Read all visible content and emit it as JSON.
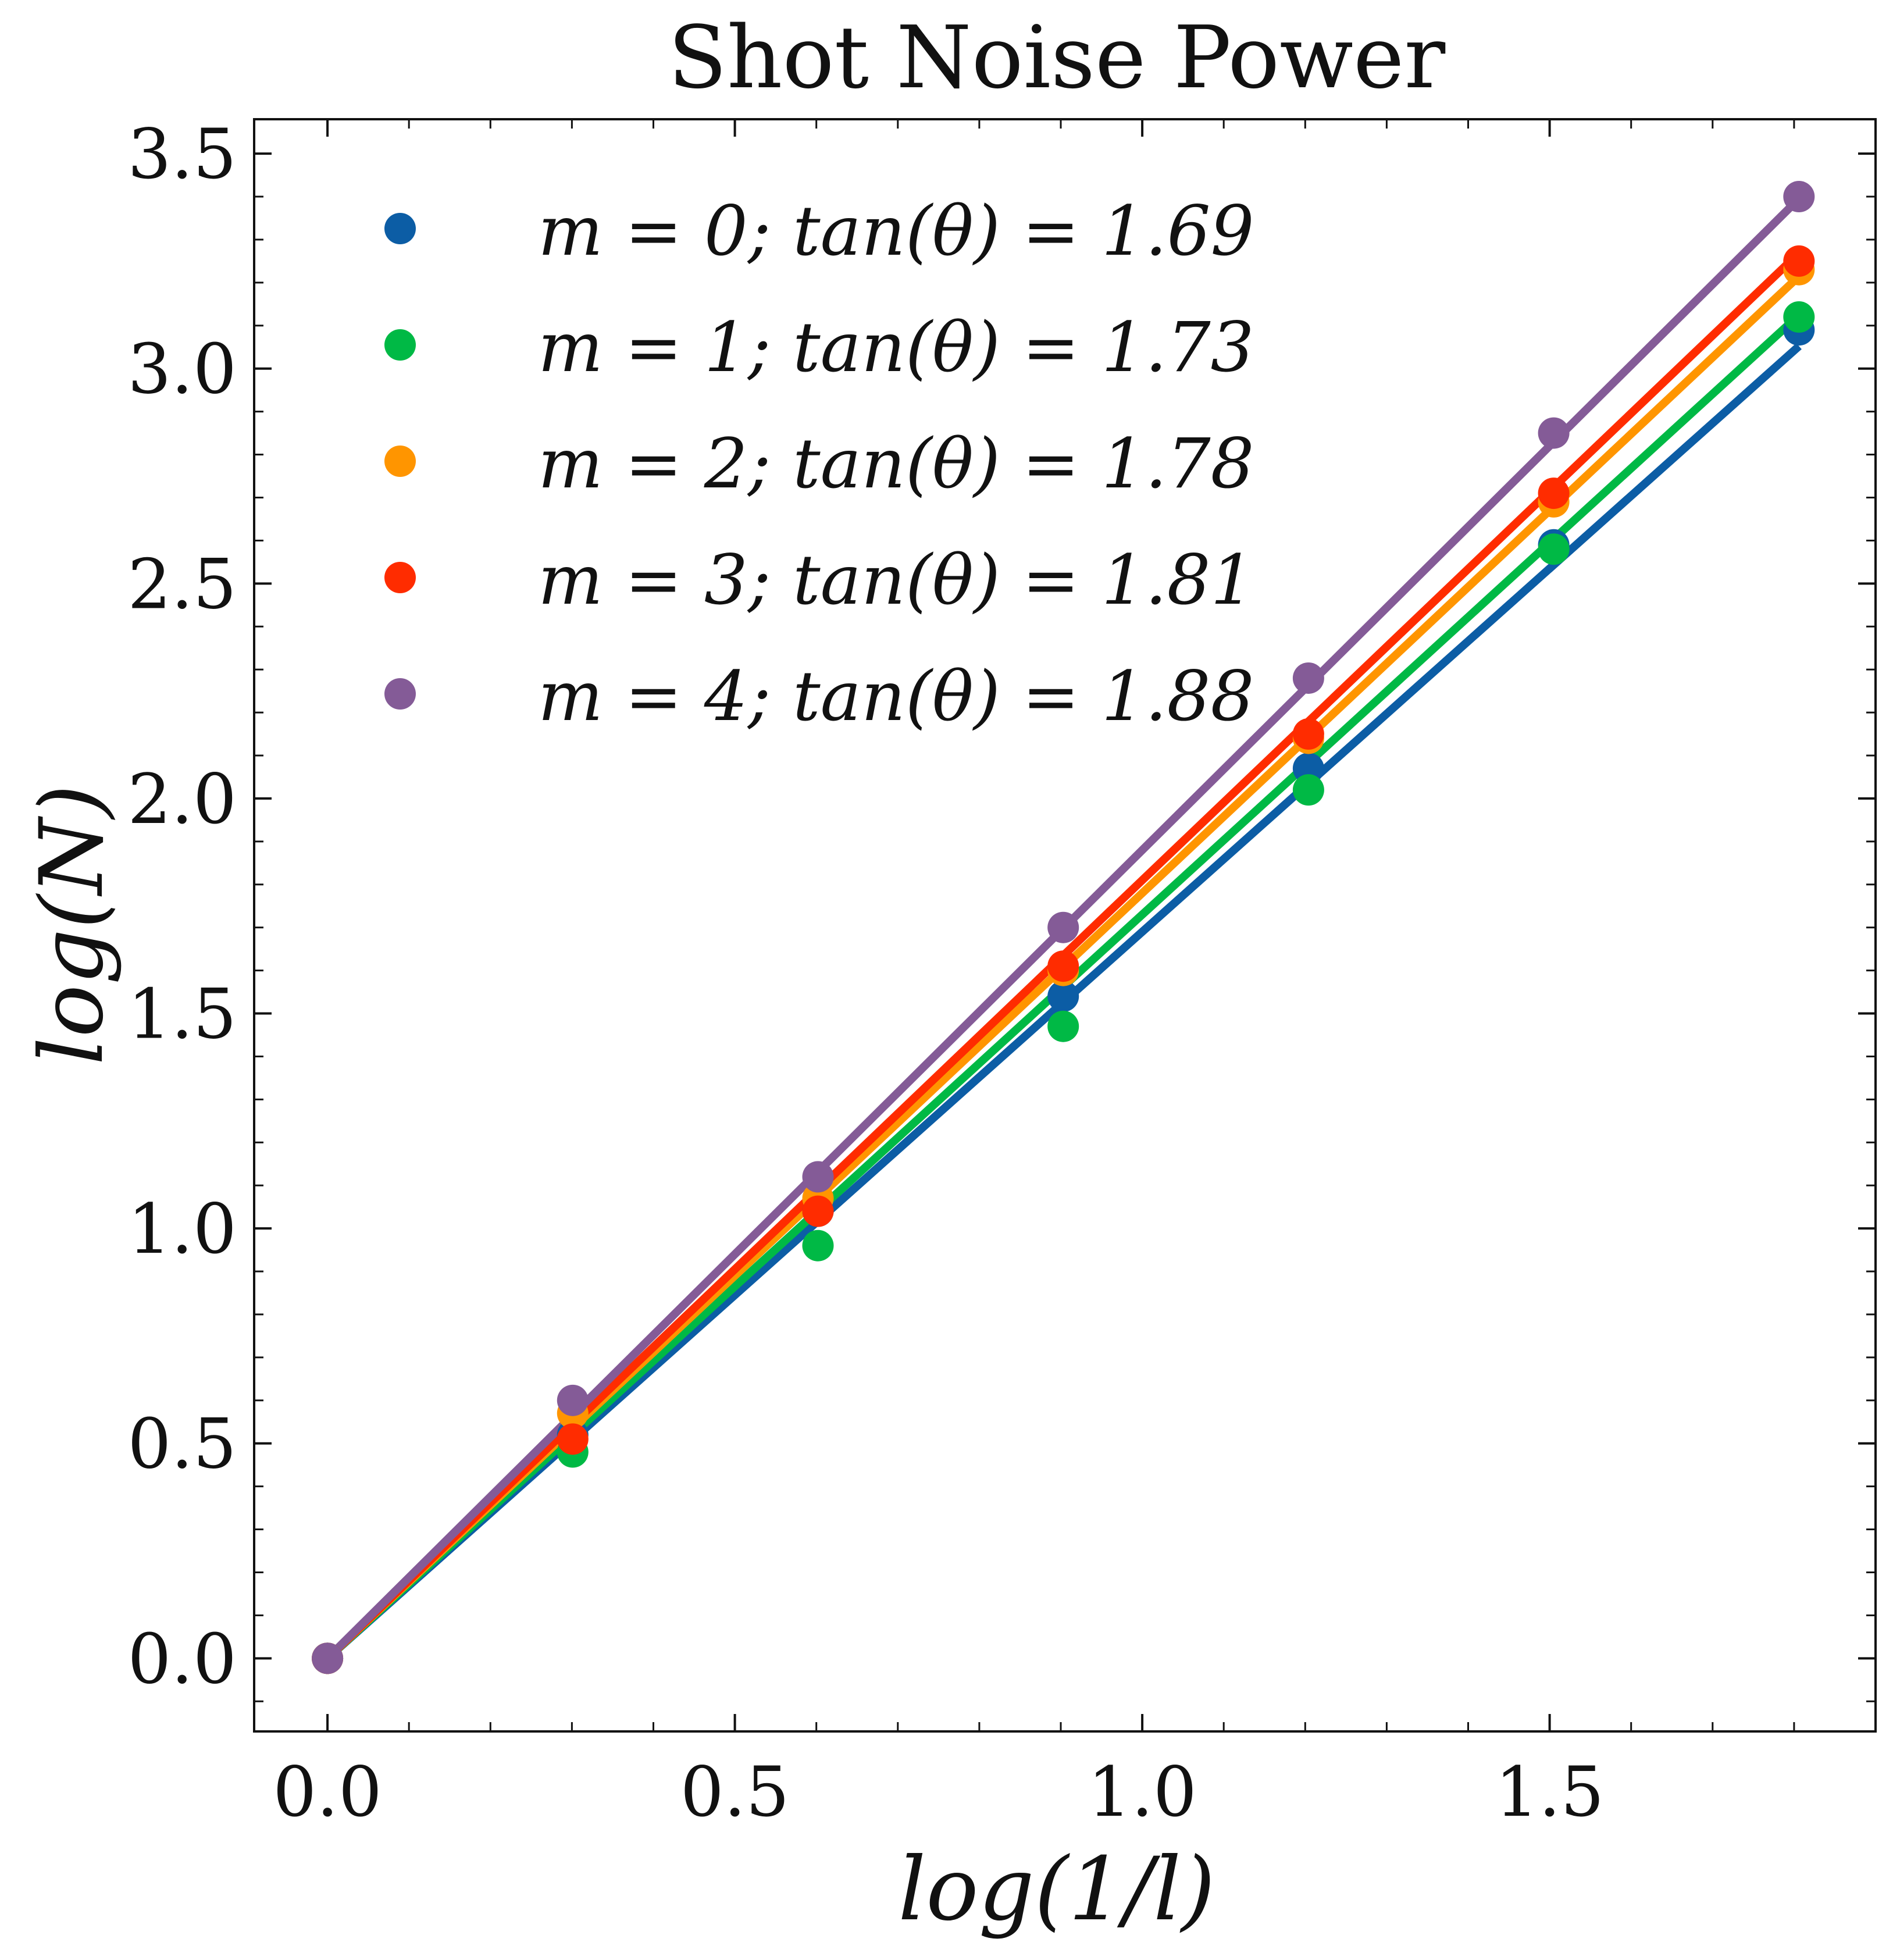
{
  "chart_data": {
    "type": "scatter",
    "title": "Shot Noise Power",
    "xlabel": "log(1/l)",
    "ylabel": "log(N)",
    "xlim": [
      -0.09,
      1.9
    ],
    "ylim": [
      -0.17,
      3.58
    ],
    "xticks": [
      0.0,
      0.5,
      1.0,
      1.5
    ],
    "xtick_labels": [
      "0.0",
      "0.5",
      "1.0",
      "1.5"
    ],
    "yticks": [
      0.0,
      0.5,
      1.0,
      1.5,
      2.0,
      2.5,
      3.0,
      3.5
    ],
    "ytick_labels": [
      "0.0",
      "0.5",
      "1.0",
      "1.5",
      "2.0",
      "2.5",
      "3.0",
      "3.5"
    ],
    "x": [
      0.0,
      0.301,
      0.602,
      0.903,
      1.204,
      1.505,
      1.806
    ],
    "legend_placement": "upper-left",
    "grid": false,
    "series": [
      {
        "name": "m = 0; tan(θ) = 1.69",
        "color": "#0C5DA5",
        "slope": 1.69,
        "values": [
          0.0,
          0.52,
          1.04,
          1.54,
          2.07,
          2.59,
          3.09
        ]
      },
      {
        "name": "m = 1; tan(θ) = 1.73",
        "color": "#00B945",
        "slope": 1.73,
        "values": [
          0.0,
          0.48,
          0.96,
          1.47,
          2.02,
          2.58,
          3.12
        ]
      },
      {
        "name": "m = 2; tan(θ) = 1.78",
        "color": "#FF9500",
        "slope": 1.78,
        "values": [
          0.0,
          0.57,
          1.07,
          1.6,
          2.14,
          2.69,
          3.23
        ]
      },
      {
        "name": "m = 3; tan(θ) = 1.81",
        "color": "#FF2C00",
        "slope": 1.81,
        "values": [
          0.0,
          0.51,
          1.04,
          1.61,
          2.15,
          2.71,
          3.25
        ]
      },
      {
        "name": "m = 4; tan(θ) = 1.88",
        "color": "#845B97",
        "slope": 1.88,
        "values": [
          0.0,
          0.6,
          1.12,
          1.7,
          2.28,
          2.85,
          3.4
        ]
      }
    ]
  }
}
